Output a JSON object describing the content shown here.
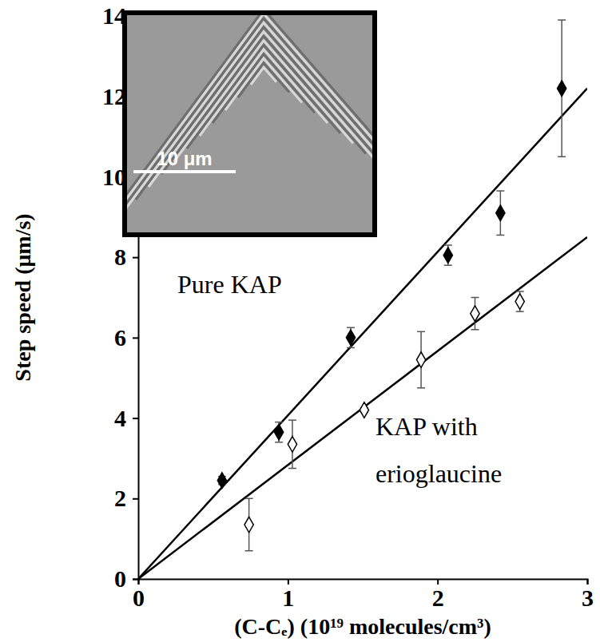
{
  "chart_data": {
    "type": "scatter",
    "x_label": "(C-Cₑ) (10¹⁹ molecules/cm³)",
    "y_label": "Step speed (μm/s)",
    "xlim": [
      0,
      3
    ],
    "xticks": [
      0,
      1,
      2,
      3
    ],
    "ylim": [
      0,
      14
    ],
    "yticks": [
      0,
      2,
      4,
      6,
      8,
      10,
      12,
      14
    ],
    "grid": false,
    "series": [
      {
        "name": "Pure KAP",
        "color": "#000000",
        "marker": "diamond",
        "x": [
          0.56,
          0.94,
          1.42,
          2.07,
          2.42,
          2.83
        ],
        "values": [
          2.45,
          3.65,
          6.0,
          8.05,
          9.1,
          12.2
        ],
        "errors": [
          0.1,
          0.25,
          0.25,
          0.25,
          0.55,
          1.7
        ],
        "fit": {
          "x": [
            0,
            3
          ],
          "values": [
            0,
            12.2
          ]
        }
      },
      {
        "name": "KAP with erioglaucine",
        "color": "#000000",
        "marker": "diamond-open",
        "x": [
          0.74,
          1.03,
          1.51,
          1.89,
          2.25,
          2.55
        ],
        "values": [
          1.35,
          3.35,
          4.2,
          5.45,
          6.6,
          6.9
        ],
        "errors": [
          0.65,
          0.6,
          0.05,
          0.7,
          0.4,
          0.25
        ],
        "fit": {
          "x": [
            0,
            3
          ],
          "values": [
            0,
            8.5
          ]
        }
      }
    ],
    "inset": {
      "scale_bar_label": "10 μm"
    }
  }
}
